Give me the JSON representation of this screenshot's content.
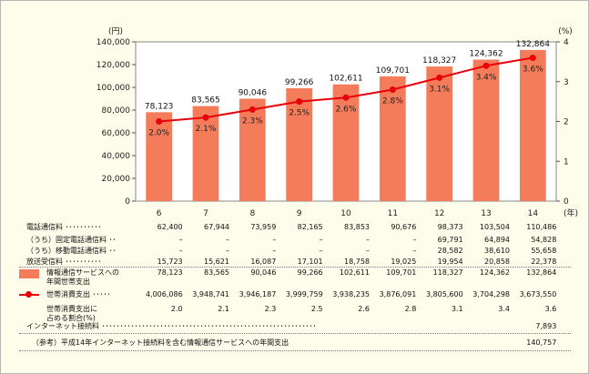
{
  "chart_data": {
    "type": "bar",
    "categories": [
      "6",
      "7",
      "8",
      "9",
      "10",
      "11",
      "12",
      "13",
      "14"
    ],
    "x_unit": "(年)",
    "series": [
      {
        "name": "情報通信サービスへの年間世帯支出",
        "kind": "bar",
        "axis": "left",
        "values": [
          78123,
          83565,
          90046,
          99266,
          102611,
          109701,
          118327,
          124362,
          132864
        ],
        "labels": [
          "78,123",
          "83,565",
          "90,046",
          "99,266",
          "102,611",
          "109,701",
          "118,327",
          "124,362",
          "132,864"
        ],
        "color": "#f47c5a"
      },
      {
        "name": "世帯消費支出に占める割合(%)",
        "kind": "line",
        "axis": "right",
        "values": [
          2.0,
          2.1,
          2.3,
          2.5,
          2.6,
          2.8,
          3.1,
          3.4,
          3.6
        ],
        "labels": [
          "2.0%",
          "2.1%",
          "2.3%",
          "2.5%",
          "2.6%",
          "2.8%",
          "3.1%",
          "3.4%",
          "3.6%"
        ],
        "color": "#e8000b"
      }
    ],
    "y_left": {
      "unit": "(円)",
      "ylim": [
        0,
        140000
      ],
      "ticks": [
        "0",
        "20,000",
        "40,000",
        "60,000",
        "80,000",
        "100,000",
        "120,000",
        "140,000"
      ]
    },
    "y_right": {
      "unit": "(%)",
      "ylim": [
        0,
        4
      ],
      "ticks": [
        "0",
        "1",
        "2",
        "3",
        "4"
      ]
    },
    "colors": {
      "bar": "#f47c5a",
      "line": "#e8000b",
      "background": "#fefcea"
    }
  },
  "table": {
    "rows": [
      {
        "label": "電話通信料 ･･････････",
        "values": [
          "62,400",
          "67,944",
          "73,959",
          "82,165",
          "83,853",
          "90,676",
          "98,373",
          "103,504",
          "110,486"
        ]
      },
      {
        "label": "（うち）固定電話通信料 ･･",
        "values": [
          "–",
          "–",
          "–",
          "–",
          "–",
          "–",
          "69,791",
          "64,894",
          "54,828"
        ]
      },
      {
        "label": "（うち）移動電話通信料 ･･",
        "values": [
          "–",
          "–",
          "–",
          "–",
          "–",
          "–",
          "28,582",
          "38,610",
          "55,658"
        ]
      },
      {
        "label": "放送受信料 ･･････････",
        "values": [
          "15,723",
          "15,621",
          "16,087",
          "17,101",
          "18,758",
          "19,025",
          "19,954",
          "20,858",
          "22,378"
        ]
      },
      {
        "label": "情報通信サービスへの",
        "label2": "年間世帯支出",
        "values": [
          "78,123",
          "83,565",
          "90,046",
          "99,266",
          "102,611",
          "109,701",
          "118,327",
          "124,362",
          "132,864"
        ]
      },
      {
        "label": "世帯消費支出 ･････",
        "values": [
          "4,006,086",
          "3,948,741",
          "3,946,187",
          "3,999,759",
          "3,938,235",
          "3,876,091",
          "3,805,600",
          "3,704,298",
          "3,673,550"
        ]
      },
      {
        "label": "世帯消費支出に",
        "label2": "占める割合(%)",
        "values": [
          "2.0",
          "2.1",
          "2.3",
          "2.5",
          "2.6",
          "2.8",
          "3.1",
          "3.4",
          "3.6"
        ]
      },
      {
        "label": "インターネット接続料 ･･･････････････････････････････････････････････････････････",
        "values": [
          "",
          "",
          "",
          "",
          "",
          "",
          "",
          "",
          "7,893"
        ]
      },
      {
        "label": "（参考）平成14年インターネット接続料を含む情報通信サービスへの年間支出",
        "values": [
          "",
          "",
          "",
          "",
          "",
          "",
          "",
          "",
          "140,757"
        ]
      }
    ]
  }
}
